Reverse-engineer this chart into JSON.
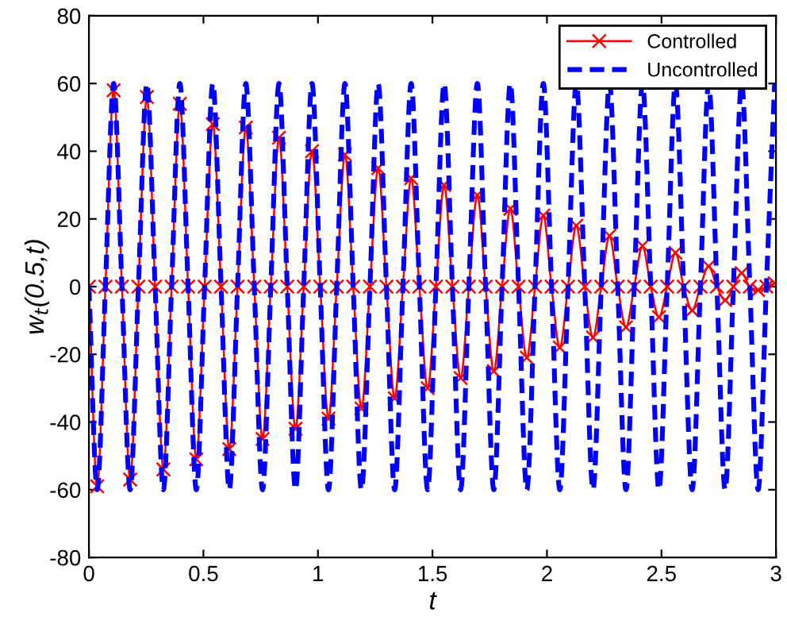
{
  "chart_data": {
    "type": "line",
    "xlabel": "t",
    "ylabel": "w$_{t}$(0.5,t)",
    "x": [
      0,
      0.036,
      0.072,
      0.108,
      0.144,
      0.18,
      0.216,
      0.253,
      0.289,
      0.325,
      0.361,
      0.397,
      0.433,
      0.469,
      0.505,
      0.541,
      0.577,
      0.613,
      0.649,
      0.685,
      0.722,
      0.758,
      0.794,
      0.83,
      0.866,
      0.902,
      0.938,
      0.974,
      1.01,
      1.046,
      1.082,
      1.118,
      1.154,
      1.19,
      1.227,
      1.263,
      1.299,
      1.335,
      1.371,
      1.407,
      1.443,
      1.479,
      1.515,
      1.551,
      1.587,
      1.623,
      1.659,
      1.696,
      1.732,
      1.768,
      1.804,
      1.84,
      1.876,
      1.912,
      1.948,
      1.984,
      2.02,
      2.056,
      2.092,
      2.128,
      2.165,
      2.201,
      2.237,
      2.273,
      2.309,
      2.345,
      2.381,
      2.417,
      2.453,
      2.489,
      2.525,
      2.561,
      2.597,
      2.634,
      2.67,
      2.706,
      2.742,
      2.778,
      2.814,
      2.85,
      2.886,
      2.922,
      2.958,
      2.994
    ],
    "series": [
      {
        "name": "Controlled",
        "color": "#ff0000",
        "marker": "cross",
        "line_style": "solid",
        "values": [
          0,
          -59,
          0,
          58,
          0,
          -57,
          0,
          56,
          0,
          -54,
          0,
          54,
          0,
          -51,
          0,
          48,
          0,
          -48,
          0,
          47,
          0,
          -45,
          0,
          44,
          0,
          -42,
          0,
          40,
          0,
          -39,
          0,
          39,
          0,
          -36,
          0,
          35,
          0,
          -33,
          0,
          32,
          0,
          -30,
          0,
          30,
          0,
          -27,
          0,
          27,
          0,
          -25,
          0,
          23,
          0,
          -21,
          0,
          21,
          0,
          -18,
          0,
          18,
          0,
          -15,
          0,
          15,
          0,
          -12,
          0,
          12,
          0,
          -9,
          0,
          10,
          0,
          -7,
          0,
          6,
          0,
          -4,
          0,
          4,
          0,
          -1,
          0,
          1
        ]
      },
      {
        "name": "Uncontrolled",
        "color": "#0000ff",
        "marker": "none",
        "line_style": "dashed",
        "values": [
          0,
          -60,
          0,
          60,
          0,
          -60,
          0,
          60,
          0,
          -60,
          0,
          60,
          0,
          -60,
          0,
          60,
          0,
          -60,
          0,
          60,
          0,
          -60,
          0,
          60,
          0,
          -60,
          0,
          60,
          0,
          -60,
          0,
          60,
          0,
          -60,
          0,
          60,
          0,
          -60,
          0,
          60,
          0,
          -60,
          0,
          60,
          0,
          -60,
          0,
          60,
          0,
          -60,
          0,
          60,
          0,
          -60,
          0,
          60,
          0,
          -60,
          0,
          60,
          0,
          -60,
          0,
          60,
          0,
          -60,
          0,
          60,
          0,
          -60,
          0,
          60,
          0,
          -60,
          0,
          60,
          0,
          -60,
          0,
          60,
          0,
          -60,
          0,
          60
        ]
      }
    ],
    "xlim": [
      0,
      3
    ],
    "ylim": [
      -80,
      80
    ],
    "xticks": [
      0,
      0.5,
      1,
      1.5,
      2,
      2.5,
      3
    ],
    "yticks": [
      -80,
      -60,
      -40,
      -20,
      0,
      20,
      40,
      60,
      80
    ],
    "grid": false,
    "legend": "top right"
  }
}
